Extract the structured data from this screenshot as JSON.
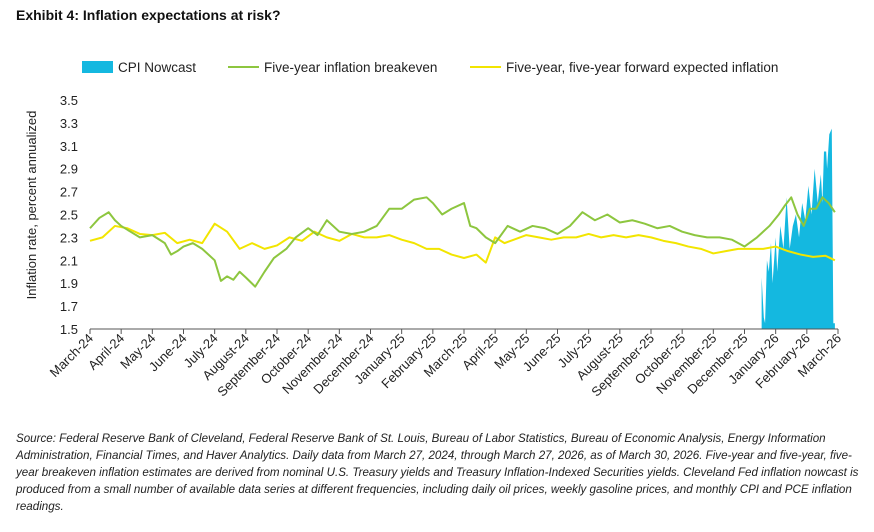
{
  "title": "Exhibit 4: Inflation expectations at risk?",
  "source_note": "Source: Federal Reserve Bank of Cleveland, Federal Reserve Bank of St. Louis, Bureau of Labor Statistics, Bureau of Economic Analysis, Energy Information Administration, Financial Times, and Haver Analytics. Daily data from March 27, 2024, through March 27, 2026, as of March 30, 2026. Five-year and five-year, five-year breakeven inflation estimates are derived from nominal U.S. Treasury yields and Treasury Inflation-Indexed Securities yields. Cleveland Fed inflation nowcast is produced from a small number of available data series at different frequencies, including daily oil prices, weekly gasoline prices, and monthly CPI and PCE inflation readings.",
  "chart_data": {
    "type": "line",
    "title": "Exhibit 4: Inflation expectations at risk?",
    "ylabel": "Inflation rate, percent annualized",
    "xlabel": "",
    "ylim": [
      1.5,
      3.5
    ],
    "yticks": [
      1.5,
      1.7,
      1.9,
      2.1,
      2.3,
      2.5,
      2.7,
      2.9,
      3.1,
      3.3,
      3.5
    ],
    "ytick_labels": [
      "1.5",
      "1.7",
      "1.9",
      "2.1",
      "2.3",
      "2.5",
      "2.7",
      "2.9",
      "3.1",
      "3.3",
      "3.5"
    ],
    "categories": [
      "March-24",
      "April-24",
      "May-24",
      "June-24",
      "July-24",
      "August-24",
      "September-24",
      "October-24",
      "November-24",
      "December-24",
      "January-25",
      "February-25",
      "March-25",
      "April-25",
      "May-25",
      "June-25",
      "July-25",
      "August-25",
      "September-25",
      "October-25",
      "November-25",
      "December-25",
      "January-26",
      "February-26",
      "March-26"
    ],
    "legend_position": "top",
    "series": [
      {
        "name": "CPI Nowcast",
        "type": "area",
        "color": "#14b8e0",
        "x": [
          21.55,
          21.62,
          21.66,
          21.72,
          21.78,
          21.85,
          21.9,
          22.0,
          22.05,
          22.15,
          22.25,
          22.35,
          22.45,
          22.55,
          22.65,
          22.75,
          22.85,
          22.95,
          23.05,
          23.15,
          23.25,
          23.35,
          23.45,
          23.5,
          23.55,
          23.62,
          23.65,
          23.72,
          23.8,
          23.85,
          23.9
        ],
        "values": [
          1.95,
          1.6,
          1.55,
          2.1,
          2.0,
          2.25,
          1.9,
          2.3,
          2.0,
          2.4,
          2.2,
          2.65,
          2.2,
          2.4,
          2.5,
          2.3,
          2.6,
          2.45,
          2.75,
          2.5,
          2.9,
          2.6,
          2.85,
          2.6,
          3.05,
          3.05,
          2.9,
          3.2,
          3.25,
          1.55,
          1.55
        ]
      },
      {
        "name": "Five-year inflation breakeven",
        "color": "#8dc63f",
        "x": [
          0,
          0.3,
          0.6,
          0.8,
          1.0,
          1.3,
          1.6,
          2.0,
          2.4,
          2.6,
          2.8,
          3.0,
          3.3,
          3.6,
          4.0,
          4.2,
          4.4,
          4.6,
          4.8,
          5.0,
          5.3,
          5.6,
          5.9,
          6.3,
          6.6,
          7.0,
          7.3,
          7.6,
          8.0,
          8.4,
          8.8,
          9.2,
          9.6,
          10.0,
          10.4,
          10.8,
          11.0,
          11.3,
          11.6,
          12.0,
          12.2,
          12.4,
          12.7,
          13.0,
          13.4,
          13.8,
          14.2,
          14.6,
          15.0,
          15.4,
          15.8,
          16.2,
          16.6,
          17.0,
          17.4,
          17.8,
          18.2,
          18.6,
          19.0,
          19.4,
          19.8,
          20.2,
          20.6,
          21.0,
          21.4,
          21.8,
          22.1,
          22.3,
          22.5,
          22.7,
          22.9,
          23.1,
          23.3,
          23.5,
          23.7,
          23.9
        ],
        "values": [
          2.38,
          2.47,
          2.52,
          2.45,
          2.4,
          2.35,
          2.3,
          2.32,
          2.25,
          2.15,
          2.18,
          2.22,
          2.25,
          2.2,
          2.1,
          1.92,
          1.96,
          1.93,
          2.0,
          1.95,
          1.87,
          2.0,
          2.12,
          2.2,
          2.3,
          2.38,
          2.32,
          2.45,
          2.35,
          2.33,
          2.35,
          2.4,
          2.55,
          2.55,
          2.63,
          2.65,
          2.6,
          2.5,
          2.55,
          2.6,
          2.4,
          2.38,
          2.3,
          2.25,
          2.4,
          2.35,
          2.4,
          2.38,
          2.33,
          2.4,
          2.52,
          2.45,
          2.5,
          2.43,
          2.45,
          2.42,
          2.38,
          2.4,
          2.35,
          2.32,
          2.3,
          2.3,
          2.28,
          2.22,
          2.3,
          2.4,
          2.5,
          2.58,
          2.65,
          2.5,
          2.4,
          2.55,
          2.55,
          2.65,
          2.6,
          2.52
        ]
      },
      {
        "name": "Five-year, five-year forward expected inflation",
        "color": "#f2e500",
        "x": [
          0,
          0.4,
          0.8,
          1.2,
          1.6,
          2.0,
          2.4,
          2.8,
          3.2,
          3.6,
          4.0,
          4.4,
          4.8,
          5.2,
          5.6,
          6.0,
          6.4,
          6.8,
          7.2,
          7.6,
          8.0,
          8.4,
          8.8,
          9.2,
          9.6,
          10.0,
          10.4,
          10.8,
          11.2,
          11.6,
          12.0,
          12.4,
          12.7,
          13.0,
          13.3,
          13.6,
          14.0,
          14.4,
          14.8,
          15.2,
          15.6,
          16.0,
          16.4,
          16.8,
          17.2,
          17.6,
          18.0,
          18.4,
          18.8,
          19.2,
          19.6,
          20.0,
          20.4,
          20.8,
          21.2,
          21.6,
          22.0,
          22.4,
          22.8,
          23.2,
          23.6,
          23.9
        ],
        "values": [
          2.27,
          2.3,
          2.4,
          2.38,
          2.33,
          2.32,
          2.34,
          2.25,
          2.28,
          2.25,
          2.42,
          2.35,
          2.2,
          2.25,
          2.2,
          2.23,
          2.3,
          2.27,
          2.35,
          2.3,
          2.27,
          2.33,
          2.3,
          2.3,
          2.32,
          2.28,
          2.25,
          2.2,
          2.2,
          2.15,
          2.12,
          2.15,
          2.08,
          2.3,
          2.25,
          2.28,
          2.32,
          2.3,
          2.28,
          2.3,
          2.3,
          2.33,
          2.3,
          2.32,
          2.3,
          2.32,
          2.3,
          2.27,
          2.25,
          2.22,
          2.2,
          2.16,
          2.18,
          2.2,
          2.2,
          2.2,
          2.22,
          2.18,
          2.15,
          2.13,
          2.14,
          2.1
        ]
      }
    ],
    "colors": {
      "cpi": "#14b8e0",
      "breakeven": "#8dc63f",
      "forward": "#f2e500",
      "axis": "#555555"
    }
  }
}
